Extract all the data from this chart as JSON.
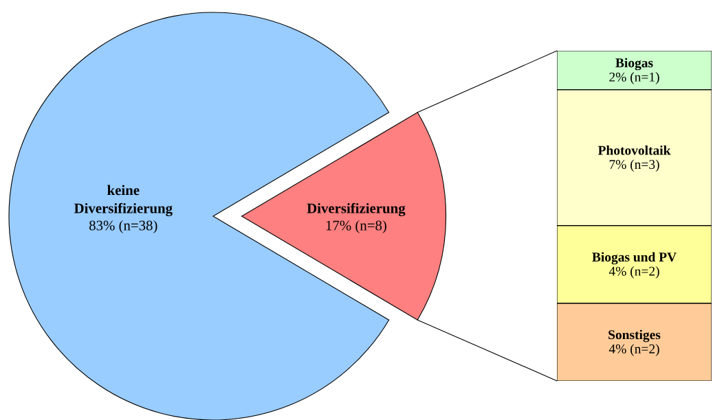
{
  "chart_data": [
    {
      "type": "pie",
      "categories": [
        "keine\nDiversifizierung",
        "Diversifizierung"
      ],
      "values": [
        83,
        17
      ],
      "colors": [
        "#99ccff",
        "#ff8080"
      ],
      "value_labels": [
        "83% (n=38)",
        "17% (n=8)"
      ]
    },
    {
      "type": "bar",
      "stacked": true,
      "categories": [
        null
      ],
      "series": [
        {
          "name": "Sonstiges",
          "color": "#ffcc99",
          "values": [
            4
          ],
          "value_labels": [
            "4% (n=2)"
          ]
        },
        {
          "name": "Biogas und PV",
          "color": "#ffff99",
          "values": [
            4
          ],
          "value_labels": [
            "4% (n=2)"
          ]
        },
        {
          "name": "Photovoltaik",
          "color": "#ffffcc",
          "values": [
            7
          ],
          "value_labels": [
            "7% (n=3)"
          ]
        },
        {
          "name": "Biogas",
          "color": "#ccffcc",
          "values": [
            2
          ],
          "value_labels": [
            "2% (n=1)"
          ]
        }
      ]
    }
  ]
}
